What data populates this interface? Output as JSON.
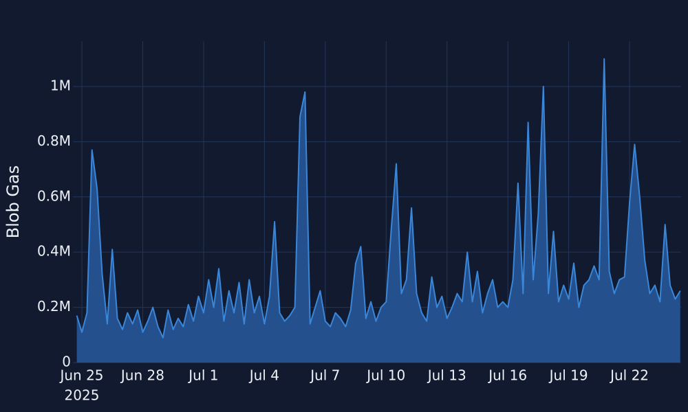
{
  "chart_data": {
    "type": "area",
    "y_label": "Blob Gas",
    "x": [
      "2025-06-24T18:00",
      "2025-06-25T00:00",
      "2025-06-25T06:00",
      "2025-06-25T12:00",
      "2025-06-25T18:00",
      "2025-06-26T00:00",
      "2025-06-26T06:00",
      "2025-06-26T12:00",
      "2025-06-26T18:00",
      "2025-06-27T00:00",
      "2025-06-27T06:00",
      "2025-06-27T12:00",
      "2025-06-27T18:00",
      "2025-06-28T00:00",
      "2025-06-28T06:00",
      "2025-06-28T12:00",
      "2025-06-28T18:00",
      "2025-06-29T00:00",
      "2025-06-29T06:00",
      "2025-06-29T12:00",
      "2025-06-29T18:00",
      "2025-06-30T00:00",
      "2025-06-30T06:00",
      "2025-06-30T12:00",
      "2025-06-30T18:00",
      "2025-07-01T00:00",
      "2025-07-01T06:00",
      "2025-07-01T12:00",
      "2025-07-01T18:00",
      "2025-07-02T00:00",
      "2025-07-02T06:00",
      "2025-07-02T12:00",
      "2025-07-02T18:00",
      "2025-07-03T00:00",
      "2025-07-03T06:00",
      "2025-07-03T12:00",
      "2025-07-03T18:00",
      "2025-07-04T00:00",
      "2025-07-04T06:00",
      "2025-07-04T12:00",
      "2025-07-04T18:00",
      "2025-07-05T00:00",
      "2025-07-05T06:00",
      "2025-07-05T12:00",
      "2025-07-05T18:00",
      "2025-07-06T00:00",
      "2025-07-06T06:00",
      "2025-07-06T12:00",
      "2025-07-06T18:00",
      "2025-07-07T00:00",
      "2025-07-07T06:00",
      "2025-07-07T12:00",
      "2025-07-07T18:00",
      "2025-07-08T00:00",
      "2025-07-08T06:00",
      "2025-07-08T12:00",
      "2025-07-08T18:00",
      "2025-07-09T00:00",
      "2025-07-09T06:00",
      "2025-07-09T12:00",
      "2025-07-09T18:00",
      "2025-07-10T00:00",
      "2025-07-10T06:00",
      "2025-07-10T12:00",
      "2025-07-10T18:00",
      "2025-07-11T00:00",
      "2025-07-11T06:00",
      "2025-07-11T12:00",
      "2025-07-11T18:00",
      "2025-07-12T00:00",
      "2025-07-12T06:00",
      "2025-07-12T12:00",
      "2025-07-12T18:00",
      "2025-07-13T00:00",
      "2025-07-13T06:00",
      "2025-07-13T12:00",
      "2025-07-13T18:00",
      "2025-07-14T00:00",
      "2025-07-14T06:00",
      "2025-07-14T12:00",
      "2025-07-14T18:00",
      "2025-07-15T00:00",
      "2025-07-15T06:00",
      "2025-07-15T12:00",
      "2025-07-15T18:00",
      "2025-07-16T00:00",
      "2025-07-16T06:00",
      "2025-07-16T12:00",
      "2025-07-16T18:00",
      "2025-07-17T00:00",
      "2025-07-17T06:00",
      "2025-07-17T12:00",
      "2025-07-17T18:00",
      "2025-07-18T00:00",
      "2025-07-18T06:00",
      "2025-07-18T12:00",
      "2025-07-18T18:00",
      "2025-07-19T00:00",
      "2025-07-19T06:00",
      "2025-07-19T12:00",
      "2025-07-19T18:00",
      "2025-07-20T00:00",
      "2025-07-20T06:00",
      "2025-07-20T12:00",
      "2025-07-20T18:00",
      "2025-07-21T00:00",
      "2025-07-21T06:00",
      "2025-07-21T12:00",
      "2025-07-21T18:00",
      "2025-07-22T00:00",
      "2025-07-22T06:00",
      "2025-07-22T12:00",
      "2025-07-22T18:00",
      "2025-07-23T00:00",
      "2025-07-23T06:00",
      "2025-07-23T12:00",
      "2025-07-23T18:00",
      "2025-07-24T00:00",
      "2025-07-24T06:00",
      "2025-07-24T12:00"
    ],
    "values": [
      170000,
      110000,
      180000,
      770000,
      630000,
      320000,
      140000,
      410000,
      160000,
      120000,
      180000,
      140000,
      190000,
      110000,
      150000,
      200000,
      130000,
      90000,
      190000,
      120000,
      160000,
      130000,
      210000,
      150000,
      240000,
      180000,
      300000,
      200000,
      340000,
      150000,
      260000,
      180000,
      290000,
      140000,
      300000,
      180000,
      240000,
      140000,
      240000,
      510000,
      180000,
      150000,
      170000,
      200000,
      890000,
      980000,
      140000,
      200000,
      260000,
      150000,
      130000,
      180000,
      160000,
      130000,
      190000,
      360000,
      420000,
      160000,
      220000,
      150000,
      200000,
      220000,
      480000,
      720000,
      250000,
      300000,
      560000,
      250000,
      180000,
      150000,
      310000,
      200000,
      240000,
      160000,
      200000,
      250000,
      220000,
      400000,
      220000,
      330000,
      180000,
      250000,
      300000,
      200000,
      220000,
      200000,
      300000,
      650000,
      250000,
      870000,
      300000,
      540000,
      1000000,
      250000,
      475000,
      220000,
      280000,
      230000,
      360000,
      200000,
      280000,
      300000,
      350000,
      300000,
      1100000,
      330000,
      250000,
      300000,
      310000,
      580000,
      790000,
      600000,
      370000,
      250000,
      280000,
      220000,
      500000,
      280000,
      230000,
      260000
    ],
    "color": "#3a86d8",
    "fill_color": "#24508d",
    "xlim": [
      "2025-06-24T13:25",
      "2025-07-24T13:00"
    ],
    "xticks": [
      {
        "value": "2025-06-25T00:00",
        "label": "Jun 25"
      },
      {
        "value": "2025-06-28T00:00",
        "label": "Jun 28"
      },
      {
        "value": "2025-07-01T00:00",
        "label": "Jul 1"
      },
      {
        "value": "2025-07-04T00:00",
        "label": "Jul 4"
      },
      {
        "value": "2025-07-07T00:00",
        "label": "Jul 7"
      },
      {
        "value": "2025-07-10T00:00",
        "label": "Jul 10"
      },
      {
        "value": "2025-07-13T00:00",
        "label": "Jul 13"
      },
      {
        "value": "2025-07-16T00:00",
        "label": "Jul 16"
      },
      {
        "value": "2025-07-19T00:00",
        "label": "Jul 19"
      },
      {
        "value": "2025-07-22T00:00",
        "label": "Jul 22"
      }
    ],
    "xtick_year": "2025",
    "ylim": [
      0,
      1164000
    ],
    "yticks": [
      0,
      {
        "value": 200000,
        "label": "0.2M"
      },
      {
        "value": 400000,
        "label": "0.4M"
      },
      {
        "value": 600000,
        "label": "0.6M"
      },
      {
        "value": 800000,
        "label": "0.8M"
      },
      {
        "value": 1000000,
        "label": "1M"
      }
    ],
    "grid": true
  }
}
